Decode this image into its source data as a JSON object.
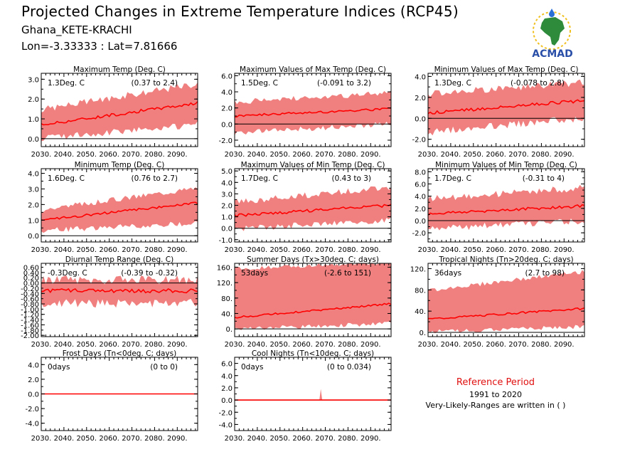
{
  "header": {
    "title": "Projected Changes in Extreme Temperature Indices (RCP45)",
    "station": "Ghana_KETE-KRACHI",
    "coords": "Lon=-3.33333 : Lat=7.81666"
  },
  "logo": {
    "text": "ACMAD",
    "icon": "africa-map-logo"
  },
  "reference": {
    "title": "Reference Period",
    "years": "1991 to 2020",
    "note": "Very-Likely-Ranges are written in ( )"
  },
  "colors": {
    "band": "#f08080",
    "line": "#ff0000",
    "zero": "#000000",
    "ref_text": "#e01010"
  },
  "x_tick_labels": [
    "2030.",
    "2040.",
    "2050.",
    "2060.",
    "2070.",
    "2080.",
    "2090."
  ],
  "chart_data": [
    {
      "type": "area",
      "title": "Maximum Temp (Deg. C)",
      "change": "1.3Deg. C",
      "range": "(0.37 to 2.4)",
      "x": [
        2030,
        2099
      ],
      "ylim": [
        -0.4,
        3.3
      ],
      "yticks": [
        0.0,
        1.0,
        2.0,
        3.0
      ],
      "ytick_labels": [
        "0.0",
        "1.0",
        "2.0",
        "3.0"
      ],
      "median_start": 0.7,
      "median_end": 1.8,
      "band_start": [
        0.2,
        1.3
      ],
      "band_end": [
        0.9,
        2.6
      ],
      "noise": 0.25
    },
    {
      "type": "area",
      "title": "Maximum Values of Max Temp (Deg. C)",
      "change": "1.5Deg. C",
      "range": "(-0.091 to 3.2)",
      "x": [
        2030,
        2099
      ],
      "ylim": [
        -2.8,
        6.3
      ],
      "yticks": [
        -2.0,
        0.0,
        2.0,
        4.0,
        6.0
      ],
      "ytick_labels": [
        "-2.0",
        "0.0",
        "2.0",
        "4.0",
        "6.0"
      ],
      "median_start": 1.0,
      "median_end": 1.9,
      "band_start": [
        -0.8,
        2.4
      ],
      "band_end": [
        0.4,
        3.5
      ],
      "noise": 0.5
    },
    {
      "type": "area",
      "title": "Minimum Values of Max Temp (Deg. C)",
      "change": "1.3Deg. C",
      "range": "(-0.078 to 2.8)",
      "x": [
        2030,
        2099
      ],
      "ylim": [
        -2.7,
        4.3
      ],
      "yticks": [
        -2.0,
        0.0,
        2.0,
        4.0
      ],
      "ytick_labels": [
        "-2.0",
        "0.0",
        "2.0",
        "4.0"
      ],
      "median_start": 0.5,
      "median_end": 1.7,
      "band_start": [
        -1.0,
        2.0
      ],
      "band_end": [
        0.4,
        3.1
      ],
      "noise": 0.5
    },
    {
      "type": "area",
      "title": "Minimum Temp (Deg. C)",
      "change": "1.6Deg. C",
      "range": "(0.76 to 2.7)",
      "x": [
        2030,
        2099
      ],
      "ylim": [
        -0.4,
        4.3
      ],
      "yticks": [
        0.0,
        1.0,
        2.0,
        3.0,
        4.0
      ],
      "ytick_labels": [
        "0.0",
        "1.0",
        "2.0",
        "3.0",
        "4.0"
      ],
      "median_start": 1.0,
      "median_end": 2.1,
      "band_start": [
        0.5,
        1.5
      ],
      "band_end": [
        1.0,
        2.9
      ],
      "noise": 0.25
    },
    {
      "type": "area",
      "title": "Maximum Values of Min Temp (Deg. C)",
      "change": "1.7Deg. C",
      "range": "(0.43 to 3)",
      "x": [
        2030,
        2099
      ],
      "ylim": [
        -1.2,
        5.2
      ],
      "yticks": [
        -1.0,
        0.0,
        1.0,
        2.0,
        3.0,
        4.0,
        5.0
      ],
      "ytick_labels": [
        "-1.0",
        "0.0",
        "1.0",
        "2.0",
        "3.0",
        "4.0",
        "5.0"
      ],
      "median_start": 1.1,
      "median_end": 2.0,
      "band_start": [
        0.2,
        2.0
      ],
      "band_end": [
        1.0,
        3.3
      ],
      "noise": 0.4
    },
    {
      "type": "area",
      "title": "Minimum Values of Min Temp (Deg. C)",
      "change": "1.7Deg. C",
      "range": "(-0.31 to 4)",
      "x": [
        2030,
        2099
      ],
      "ylim": [
        -3.5,
        8.5
      ],
      "yticks": [
        -2.0,
        0.0,
        2.0,
        4.0,
        6.0,
        8.0
      ],
      "ytick_labels": [
        "-2.0",
        "0.0",
        "2.0",
        "4.0",
        "6.0",
        "8.0"
      ],
      "median_start": 1.1,
      "median_end": 2.4,
      "band_start": [
        -0.8,
        3.0
      ],
      "band_end": [
        0.5,
        4.8
      ],
      "noise": 0.8
    },
    {
      "type": "area",
      "title": "Diurnal Temp Range (Deg. C)",
      "change": "-0.3Deg. C",
      "range": "(-0.39 to -0.32)",
      "x": [
        2030,
        2099
      ],
      "ylim": [
        -2.05,
        0.75
      ],
      "yticks": [
        -2.0,
        -1.6,
        -1.2,
        -0.8,
        -0.4,
        0.0,
        0.4
      ],
      "ytick_labels": [
        "-2.00",
        "-1.60",
        "-1.20",
        "-0.80",
        "-0.40",
        "0.00",
        "0.40"
      ],
      "extra_ytick_labels": [
        "0.60",
        "0.20",
        "-0.20",
        "-0.60",
        "-1.00",
        "-1.40",
        "-1.80"
      ],
      "median_start": -0.3,
      "median_end": -0.3,
      "band_start": [
        -0.6,
        -0.05
      ],
      "band_end": [
        -0.6,
        -0.05
      ],
      "noise": 0.25
    },
    {
      "type": "area",
      "title": "Summer Days (Tx>30deg. C; days)",
      "change": "53days",
      "range": "(-2.6 to 151)",
      "x": [
        2030,
        2099
      ],
      "ylim": [
        -20,
        170
      ],
      "yticks": [
        0,
        40,
        80,
        120,
        160
      ],
      "ytick_labels": [
        "0.",
        "40.",
        "80.",
        "120.",
        "160."
      ],
      "median_start": 30,
      "median_end": 65,
      "band_start": [
        5,
        150
      ],
      "band_end": [
        20,
        168
      ],
      "noise": 8
    },
    {
      "type": "area",
      "title": "Tropical Nights (Tn>20deg. C; days)",
      "change": "36days",
      "range": "(2.7 to 98)",
      "x": [
        2030,
        2099
      ],
      "ylim": [
        -8,
        130
      ],
      "yticks": [
        0,
        40,
        80,
        120
      ],
      "ytick_labels": [
        "0.",
        "40.",
        "80.",
        "120."
      ],
      "median_start": 25,
      "median_end": 45,
      "band_start": [
        5,
        75
      ],
      "band_end": [
        15,
        110
      ],
      "noise": 6
    },
    {
      "type": "area",
      "title": "Frost Days (Tn<0deg. C; days)",
      "change": "0days",
      "range": "(0 to 0)",
      "x": [
        2030,
        2099
      ],
      "ylim": [
        -5,
        5
      ],
      "yticks": [
        -4.0,
        -2.0,
        0.0,
        2.0,
        4.0
      ],
      "ytick_labels": [
        "-4.0",
        "-2.0",
        "0.0",
        "2.0",
        "4.0"
      ],
      "median_start": 0,
      "median_end": 0,
      "band_start": [
        0,
        0
      ],
      "band_end": [
        0,
        0
      ],
      "noise": 0
    },
    {
      "type": "area",
      "title": "Cool Nights (Tn<10deg. C; days)",
      "change": "0days",
      "range": "(0 to 0.034)",
      "x": [
        2030,
        2099
      ],
      "ylim": [
        -5,
        7
      ],
      "yticks": [
        -4.0,
        -2.0,
        0.0,
        2.0,
        4.0,
        6.0
      ],
      "ytick_labels": [
        "-4.0",
        "-2.0",
        "0.0",
        "2.0",
        "4.0",
        "6.0"
      ],
      "median_start": 0,
      "median_end": 0,
      "band_start": [
        0,
        0
      ],
      "band_end": [
        0,
        0
      ],
      "noise": 0,
      "spike_year": 2068,
      "spike_value": 1.8
    }
  ]
}
